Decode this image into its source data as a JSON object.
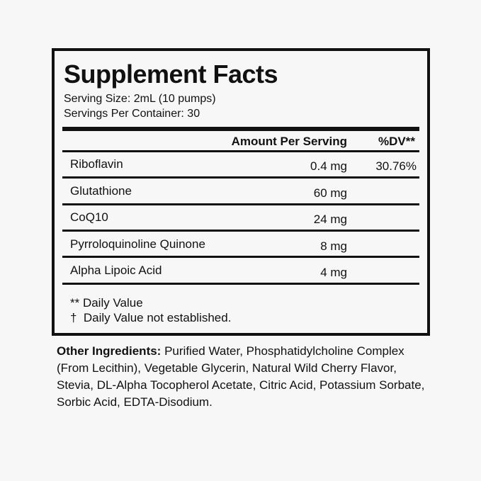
{
  "title": "Supplement Facts",
  "serving_size": "Serving Size: 2mL (10 pumps)",
  "servings_per_container": "Servings Per Container: 30",
  "header": {
    "amount": "Amount Per Serving",
    "dv": "%DV**"
  },
  "rows": [
    {
      "name": "Riboflavin",
      "amount": "0.4 mg",
      "dv": "30.76%"
    },
    {
      "name": "Glutathione",
      "amount": "60 mg",
      "dv": ""
    },
    {
      "name": "CoQ10",
      "amount": "24 mg",
      "dv": ""
    },
    {
      "name": "Pyrroloquinoline Quinone",
      "amount": "8 mg",
      "dv": ""
    },
    {
      "name": "Alpha Lipoic Acid",
      "amount": "4 mg",
      "dv": ""
    }
  ],
  "footnotes": [
    "** Daily Value",
    "†  Daily Value not established."
  ],
  "other_ingredients": {
    "label": "Other Ingredients:",
    "text": " Purified Water, Phosphatidylcholine Complex (From Lecithin), Vegetable Glycerin, Natural Wild Cherry Flavor, Stevia, DL-Alpha Tocopherol Acetate, Citric Acid, Potassium Sorbate, Sorbic Acid, EDTA-Disodium."
  }
}
